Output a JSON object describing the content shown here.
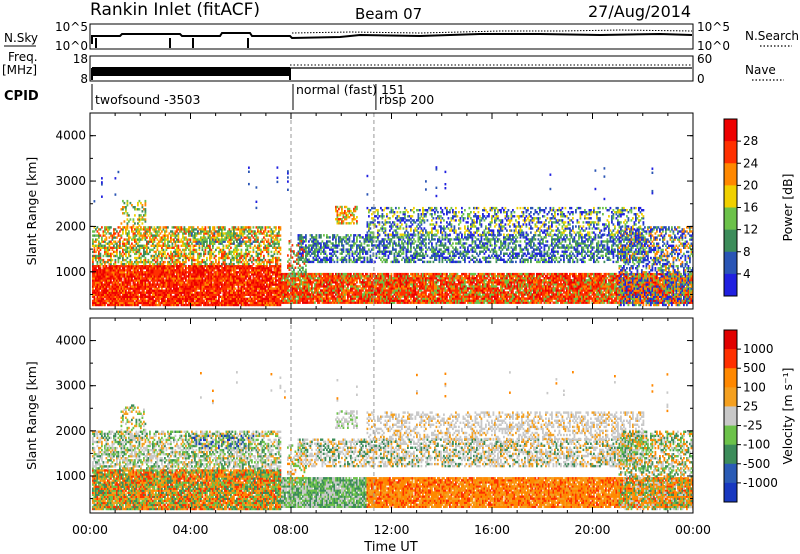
{
  "header": {
    "station": "Rankin Inlet (fitACF)",
    "beam": "Beam 07",
    "date": "27/Aug/2014"
  },
  "noise_panel": {
    "left_label": "N.Sky",
    "right_label": "N.Search",
    "left_ticks": [
      "10^5",
      "10^0"
    ],
    "right_ticks": [
      "10^5",
      "10^0"
    ]
  },
  "freq_panel": {
    "left_label_1": "Freq.",
    "left_label_2": "[MHz]",
    "left_ticks": [
      "18",
      "8"
    ],
    "right_label": "Nave",
    "right_ticks": [
      "60",
      "0"
    ]
  },
  "cpid": {
    "label": "CPID",
    "segments": [
      {
        "start_hour": 0,
        "text": "twofsound -3503"
      },
      {
        "start_hour": 8,
        "text": "normal (fast) 151"
      },
      {
        "start_hour": 11.3,
        "text": "rbsp 200"
      }
    ]
  },
  "chart_data": [
    {
      "type": "heatmap",
      "name": "power",
      "ylabel": "Slant Range [km]",
      "xlabel": "",
      "ylim": [
        180,
        4500
      ],
      "y_ticks": [
        "1000",
        "2000",
        "3000",
        "4000"
      ],
      "colorbar_label": "Power [dB]",
      "colorbar_ticks": [
        "4",
        "8",
        "12",
        "16",
        "20",
        "24",
        "28"
      ],
      "colors": [
        "#2020e0",
        "#2a55b5",
        "#3c8c5a",
        "#6cc24a",
        "#f0d000",
        "#ff8800",
        "#ff3000",
        "#ee0000"
      ]
    },
    {
      "type": "heatmap",
      "name": "velocity",
      "ylabel": "Slant Range [km]",
      "xlabel": "Time UT",
      "ylim": [
        180,
        4500
      ],
      "y_ticks": [
        "1000",
        "2000",
        "3000",
        "4000"
      ],
      "x_ticks": [
        "00:00",
        "04:00",
        "08:00",
        "12:00",
        "16:00",
        "20:00",
        "00:00"
      ],
      "colorbar_label": "Velocity [m s⁻¹]",
      "colorbar_ticks": [
        "1000",
        "500",
        "100",
        "25",
        "-25",
        "-100",
        "-500",
        "-1000"
      ],
      "colors": [
        "#1838c0",
        "#2a5bb5",
        "#3c8c5a",
        "#6cc24a",
        "#c8c8c8",
        "#f4a020",
        "#ff8800",
        "#ff3000",
        "#e00000"
      ]
    }
  ]
}
